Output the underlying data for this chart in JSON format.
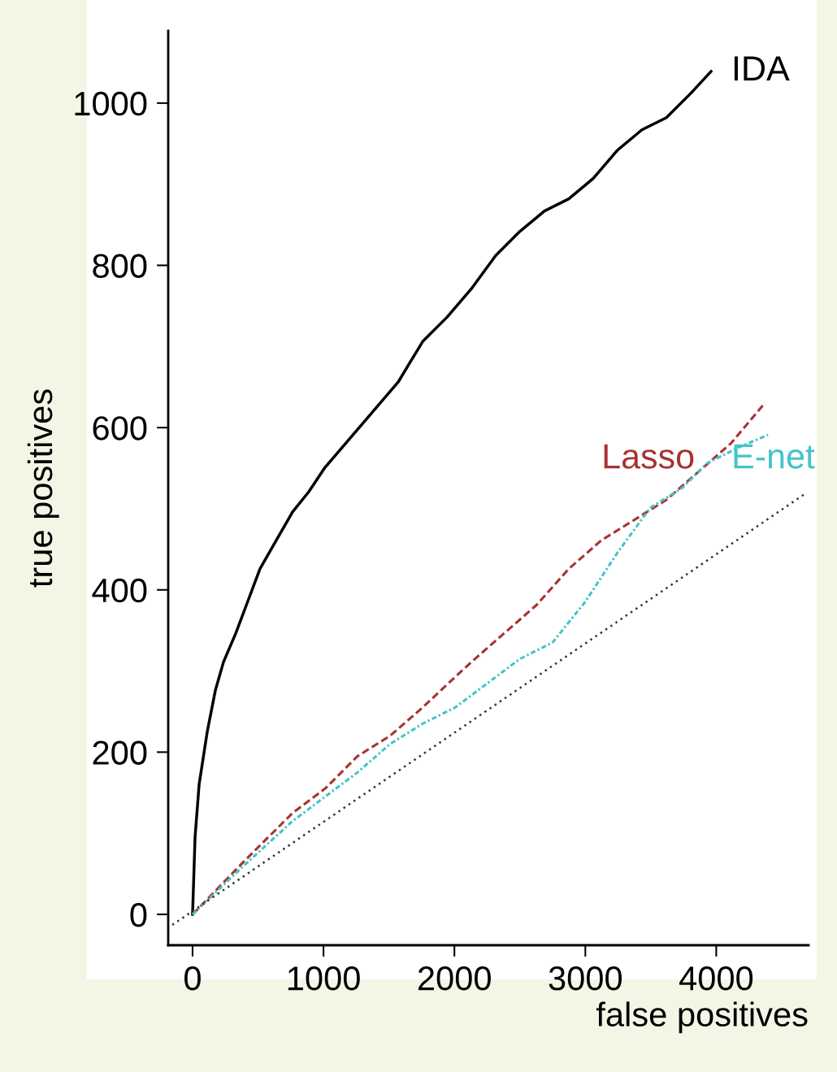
{
  "chart_data": {
    "type": "line",
    "xlabel": "false positives",
    "ylabel": "true positives",
    "xlim": [
      -186,
      4705
    ],
    "ylim": [
      -38,
      1089
    ],
    "xticks": [
      0,
      1000,
      2000,
      3000,
      4000
    ],
    "yticks": [
      0,
      200,
      400,
      600,
      800,
      1000
    ],
    "grid": false,
    "legend": false,
    "marker": "none",
    "series": [
      {
        "name": "IDA",
        "color": "#000000",
        "line_style": "solid",
        "x": [
          0,
          19,
          50,
          112,
          174,
          236,
          329,
          422,
          515,
          639,
          764,
          888,
          1012,
          1198,
          1384,
          1570,
          1757,
          1943,
          2129,
          2315,
          2501,
          2688,
          2874,
          3060,
          3246,
          3432,
          3619,
          3805,
          3960
        ],
        "values": [
          0,
          95,
          160,
          225,
          276,
          311,
          346,
          386,
          426,
          461,
          496,
          521,
          551,
          586,
          621,
          656,
          706,
          736,
          771,
          812,
          842,
          867,
          882,
          907,
          942,
          967,
          982,
          1012,
          1039
        ]
      },
      {
        "name": "Lasso",
        "color": "#a83232",
        "line_style": "dashed",
        "x": [
          0,
          391,
          764,
          1012,
          1260,
          1508,
          1757,
          1955,
          2129,
          2377,
          2625,
          2874,
          3122,
          3371,
          3619,
          3867,
          4115,
          4364
        ],
        "values": [
          0,
          65,
          125,
          155,
          195,
          220,
          255,
          285,
          311,
          346,
          381,
          426,
          461,
          486,
          511,
          546,
          581,
          629
        ]
      },
      {
        "name": "E-net",
        "color": "#44c4c8",
        "line_style": "dashdot",
        "x": [
          0,
          391,
          764,
          1012,
          1260,
          1508,
          1757,
          2005,
          2253,
          2501,
          2749,
          2998,
          3246,
          3495,
          3743,
          3929,
          4177,
          4395
        ],
        "values": [
          0,
          60,
          115,
          145,
          175,
          210,
          235,
          255,
          285,
          315,
          335,
          385,
          446,
          501,
          526,
          556,
          576,
          591
        ]
      },
      {
        "color": "#333333",
        "line_style": "dotted",
        "x": [
          -155,
          4674
        ],
        "values": [
          -13,
          518
        ]
      }
    ]
  }
}
